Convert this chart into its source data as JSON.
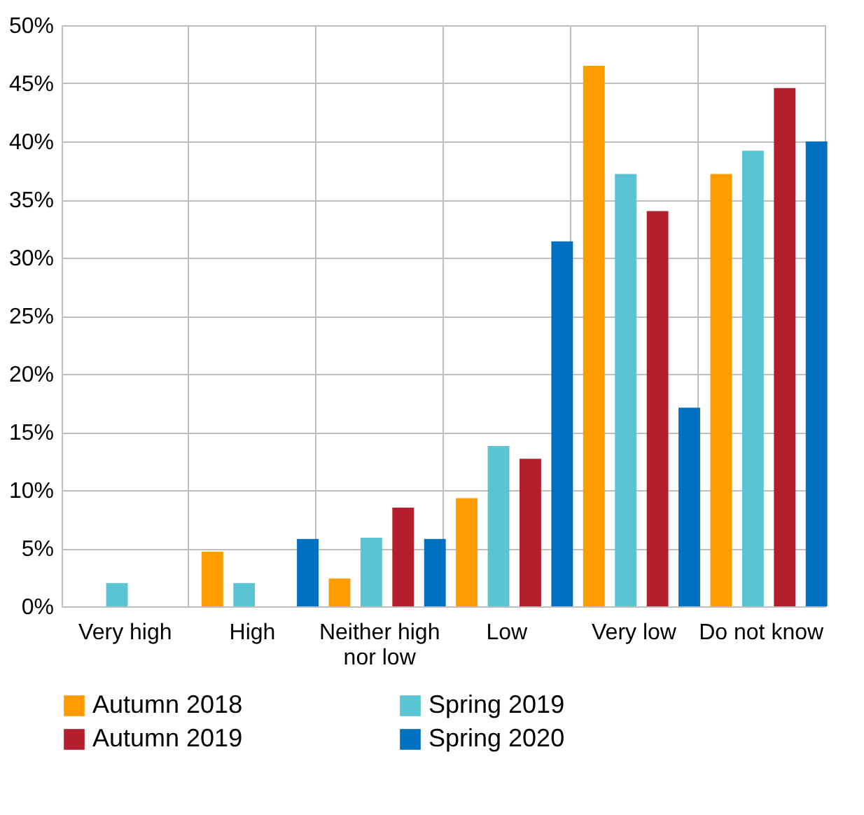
{
  "chart_data": {
    "type": "bar",
    "categories": [
      "Very high",
      "High",
      "Neither high nor low",
      "Low",
      "Very low",
      "Do not know"
    ],
    "series": [
      {
        "name": "Autumn 2018",
        "color": "#ff9c00",
        "values": [
          0,
          4.7,
          2.4,
          9.3,
          46.5,
          37.2
        ]
      },
      {
        "name": "Spring 2019",
        "color": "#5bc4d2",
        "values": [
          2,
          2,
          5.9,
          13.8,
          37.2,
          39.2
        ]
      },
      {
        "name": "Autumn 2019",
        "color": "#b41f2e",
        "values": [
          0,
          0,
          8.5,
          12.7,
          34,
          44.6
        ]
      },
      {
        "name": "Spring 2020",
        "color": "#0070c0",
        "values": [
          0,
          5.8,
          5.8,
          31.4,
          17.1,
          40
        ]
      }
    ],
    "ylim": [
      0,
      50
    ],
    "yticks": [
      {
        "value": 0,
        "label": "0%"
      },
      {
        "value": 5,
        "label": "5%"
      },
      {
        "value": 10,
        "label": "10%"
      },
      {
        "value": 15,
        "label": "15%"
      },
      {
        "value": 20,
        "label": "20%"
      },
      {
        "value": 25,
        "label": "25%"
      },
      {
        "value": 30,
        "label": "30%"
      },
      {
        "value": 35,
        "label": "35%"
      },
      {
        "value": 40,
        "label": "40%"
      },
      {
        "value": 45,
        "label": "45%"
      },
      {
        "value": 50,
        "label": "50%"
      }
    ],
    "grid": true,
    "legend": "bottom"
  }
}
